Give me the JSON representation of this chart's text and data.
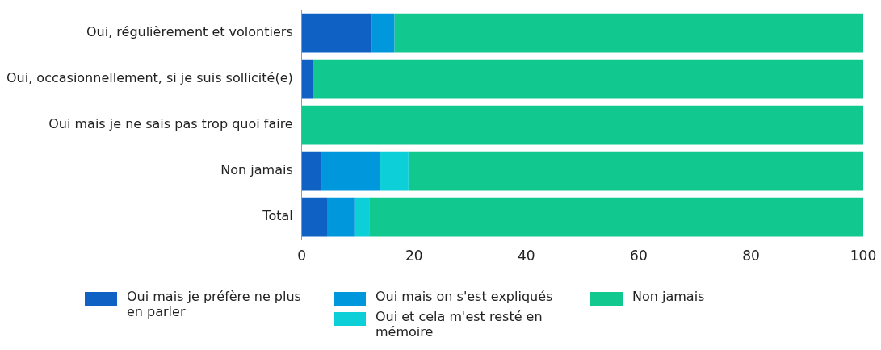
{
  "chart_data": {
    "type": "bar",
    "orientation": "horizontal",
    "stacked": true,
    "categories": [
      "Oui, régulièrement et volontiers",
      "Oui, occasionnellement, si je suis sollicité(e)",
      "Oui mais je ne sais pas trop quoi faire",
      "Non jamais",
      "Total"
    ],
    "series": [
      {
        "name": "Oui mais je préfère ne plus en parler",
        "color": "#0f62c4",
        "values": [
          12.5,
          2,
          0,
          3.5,
          4.5
        ]
      },
      {
        "name": "Oui mais on s'est expliqués",
        "color": "#0097dc",
        "values": [
          4,
          0,
          0,
          10.5,
          5
        ]
      },
      {
        "name": "Oui et cela m'est resté en mémoire",
        "color": "#0ccfd8",
        "values": [
          0,
          0,
          0,
          5,
          2.5
        ]
      },
      {
        "name": "Non jamais",
        "color": "#11c98f",
        "values": [
          83.5,
          98,
          100,
          81,
          88
        ]
      }
    ],
    "xlim": [
      0,
      100
    ],
    "xticks": [
      0,
      20,
      40,
      60,
      80,
      100
    ],
    "grid": false,
    "legend": "bottom"
  }
}
